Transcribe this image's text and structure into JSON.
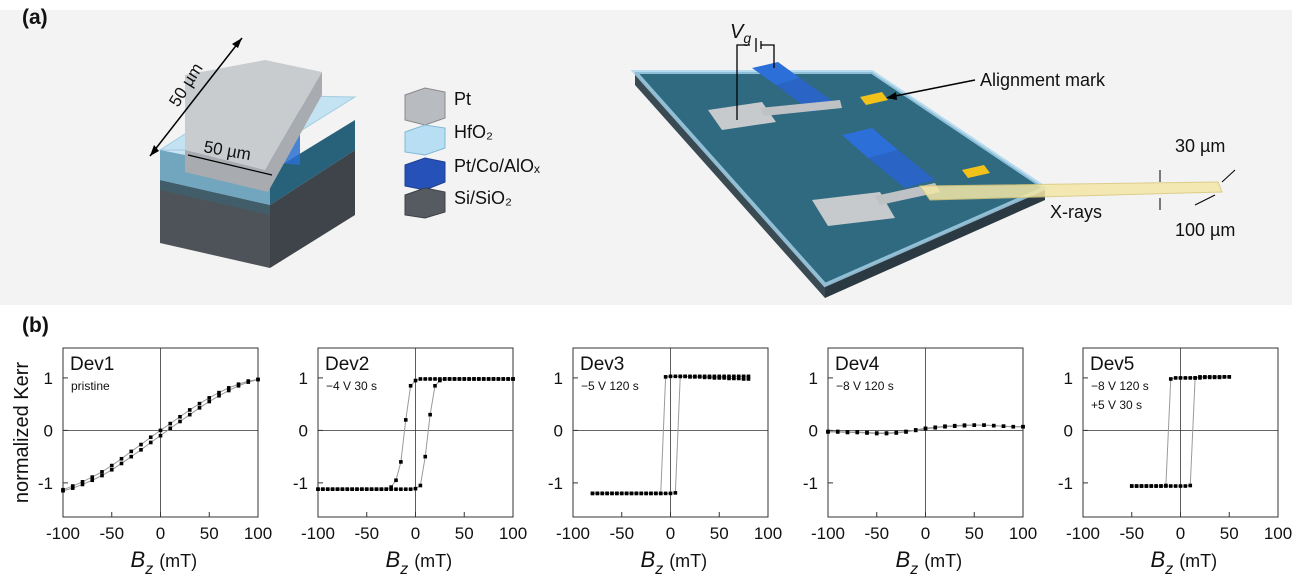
{
  "panel_a": {
    "label": "(a)",
    "device_labels": [
      "50 µm",
      "50 µm"
    ],
    "layer_legend": [
      "Pt",
      "HfO₂",
      "Pt/Co/AlOₓ",
      "Si/SiO₂"
    ],
    "gate_voltage": {
      "main": "V",
      "sub": "g"
    },
    "alignment_mark": "Alignment mark",
    "beam_height": "30 µm",
    "beam_label": "X-rays",
    "beam_width": "100 µm"
  },
  "panel_b": {
    "label": "(b)"
  },
  "chart_data": [
    {
      "type": "line",
      "title": "Dev1",
      "annotation": [
        "pristine"
      ],
      "ylabel": "normalized Kerr",
      "xlabel": {
        "main": "B",
        "sub": "z",
        "unit": "(mT)"
      },
      "xlim": [
        -100,
        100
      ],
      "xticks": [
        -100,
        -50,
        0,
        50,
        100
      ],
      "ylim": [
        -1.65,
        1.57
      ],
      "yticks": [
        -1,
        0,
        1
      ],
      "line_color": "#9a9a9a",
      "x": [
        -100,
        -90,
        -80,
        -70,
        -60,
        -50,
        -40,
        -30,
        -20,
        -10,
        0,
        10,
        20,
        30,
        40,
        50,
        60,
        70,
        80,
        90,
        100
      ],
      "series": [
        {
          "color": "#000000",
          "values": [
            -1.15,
            -1.1,
            -1.03,
            -0.95,
            -0.86,
            -0.75,
            -0.63,
            -0.5,
            -0.37,
            -0.23,
            -0.1,
            0.04,
            0.17,
            0.3,
            0.43,
            0.55,
            0.66,
            0.76,
            0.85,
            0.92,
            0.97
          ]
        },
        {
          "color": "#000000",
          "values": [
            -1.13,
            -1.06,
            -0.98,
            -0.89,
            -0.79,
            -0.67,
            -0.54,
            -0.4,
            -0.27,
            -0.13,
            0.0,
            0.13,
            0.26,
            0.39,
            0.51,
            0.62,
            0.72,
            0.81,
            0.88,
            0.94,
            0.97
          ]
        }
      ]
    },
    {
      "type": "line",
      "title": "Dev2",
      "annotation": [
        "−4 V 30 s"
      ],
      "xlabel": {
        "main": "B",
        "sub": "z",
        "unit": "(mT)"
      },
      "xlim": [
        -100,
        100
      ],
      "xticks": [
        -100,
        -50,
        0,
        50,
        100
      ],
      "ylim": [
        -1.65,
        1.57
      ],
      "yticks": [
        -1,
        0,
        1
      ],
      "line_color": "#9a9a9a",
      "x": [
        -100,
        -95,
        -90,
        -85,
        -80,
        -75,
        -70,
        -65,
        -60,
        -55,
        -50,
        -45,
        -40,
        -35,
        -30,
        -25,
        -20,
        -15,
        -10,
        -5,
        0,
        5,
        10,
        15,
        20,
        25,
        30,
        35,
        40,
        45,
        50,
        55,
        60,
        65,
        70,
        75,
        80,
        85,
        90,
        95,
        100
      ],
      "series": [
        {
          "color": "#000000",
          "values": [
            -1.12,
            -1.12,
            -1.12,
            -1.12,
            -1.12,
            -1.12,
            -1.12,
            -1.12,
            -1.12,
            -1.12,
            -1.12,
            -1.12,
            -1.12,
            -1.12,
            -1.12,
            -1.12,
            -1.12,
            -1.12,
            -1.12,
            -1.12,
            -1.11,
            -1.05,
            -0.5,
            0.3,
            0.85,
            0.95,
            0.98,
            0.98,
            0.98,
            0.98,
            0.98,
            0.98,
            0.98,
            0.98,
            0.98,
            0.98,
            0.98,
            0.98,
            0.98,
            0.98,
            0.98
          ]
        },
        {
          "color": "#000000",
          "values": [
            -1.12,
            -1.12,
            -1.12,
            -1.12,
            -1.12,
            -1.12,
            -1.12,
            -1.12,
            -1.12,
            -1.12,
            -1.12,
            -1.12,
            -1.12,
            -1.12,
            -1.12,
            -1.08,
            -0.95,
            -0.6,
            0.2,
            0.85,
            0.95,
            0.98,
            0.98,
            0.98,
            0.98,
            0.98,
            0.98,
            0.98,
            0.98,
            0.98,
            0.98,
            0.98,
            0.98,
            0.98,
            0.98,
            0.98,
            0.98,
            0.98,
            0.98,
            0.98,
            0.98
          ]
        }
      ]
    },
    {
      "type": "line",
      "title": "Dev3",
      "annotation": [
        "−5 V 120 s"
      ],
      "xlabel": {
        "main": "B",
        "sub": "z",
        "unit": "(mT)"
      },
      "xlim": [
        -100,
        100
      ],
      "xticks": [
        -100,
        -50,
        0,
        50,
        100
      ],
      "ylim": [
        -1.65,
        1.57
      ],
      "yticks": [
        -1,
        0,
        1
      ],
      "line_color": "#9a9a9a",
      "x": [
        -80,
        -75,
        -70,
        -65,
        -60,
        -55,
        -50,
        -45,
        -40,
        -35,
        -30,
        -25,
        -20,
        -15,
        -10,
        -5,
        0,
        5,
        10,
        15,
        20,
        25,
        30,
        35,
        40,
        45,
        50,
        55,
        60,
        65,
        70,
        75,
        80
      ],
      "series": [
        {
          "color": "#000000",
          "values": [
            -1.2,
            -1.2,
            -1.2,
            -1.2,
            -1.2,
            -1.2,
            -1.2,
            -1.2,
            -1.2,
            -1.2,
            -1.2,
            -1.2,
            -1.2,
            -1.2,
            -1.2,
            -1.2,
            -1.2,
            -1.19,
            1.03,
            1.03,
            1.02,
            1.02,
            1.02,
            1.01,
            1.01,
            1.0,
            1.0,
            1.0,
            0.99,
            0.99,
            0.99,
            0.98,
            0.98
          ]
        },
        {
          "color": "#000000",
          "values": [
            -1.2,
            -1.2,
            -1.2,
            -1.2,
            -1.2,
            -1.2,
            -1.2,
            -1.2,
            -1.2,
            -1.2,
            -1.2,
            -1.2,
            -1.2,
            -1.2,
            -1.2,
            1.02,
            1.03,
            1.03,
            1.03,
            1.03,
            1.03,
            1.03,
            1.03,
            1.03,
            1.03,
            1.03,
            1.03,
            1.03,
            1.03,
            1.03,
            1.03,
            1.03,
            1.03
          ]
        }
      ]
    },
    {
      "type": "line",
      "title": "Dev4",
      "annotation": [
        "−8 V 120 s"
      ],
      "xlabel": {
        "main": "B",
        "sub": "z",
        "unit": "(mT)"
      },
      "xlim": [
        -100,
        100
      ],
      "xticks": [
        -100,
        -50,
        0,
        50,
        100
      ],
      "ylim": [
        -1.65,
        1.57
      ],
      "yticks": [
        -1,
        0,
        1
      ],
      "line_color": "#9a9a9a",
      "x": [
        -100,
        -90,
        -80,
        -70,
        -60,
        -50,
        -40,
        -30,
        -20,
        -10,
        0,
        10,
        20,
        30,
        40,
        50,
        60,
        70,
        80,
        90,
        100
      ],
      "series": [
        {
          "color": "#000000",
          "values": [
            -0.02,
            -0.02,
            -0.03,
            -0.03,
            -0.04,
            -0.05,
            -0.05,
            -0.04,
            -0.02,
            0.01,
            0.04,
            0.06,
            0.08,
            0.09,
            0.1,
            0.1,
            0.1,
            0.09,
            0.08,
            0.07,
            0.07
          ]
        },
        {
          "color": "#000000",
          "values": [
            -0.03,
            -0.03,
            -0.04,
            -0.04,
            -0.05,
            -0.06,
            -0.06,
            -0.05,
            -0.03,
            0.0,
            0.03,
            0.05,
            0.07,
            0.08,
            0.09,
            0.1,
            0.1,
            0.09,
            0.08,
            0.07,
            0.07
          ]
        }
      ]
    },
    {
      "type": "line",
      "title": "Dev5",
      "annotation": [
        "−8 V 120 s",
        "+5 V 30 s"
      ],
      "xlabel": {
        "main": "B",
        "sub": "z",
        "unit": "(mT)"
      },
      "xlim": [
        -100,
        100
      ],
      "xticks": [
        -100,
        -50,
        0,
        50,
        100
      ],
      "ylim": [
        -1.65,
        1.57
      ],
      "yticks": [
        -1,
        0,
        1
      ],
      "line_color": "#9a9a9a",
      "x": [
        -50,
        -45,
        -40,
        -35,
        -30,
        -25,
        -20,
        -15,
        -10,
        -5,
        0,
        5,
        10,
        15,
        20,
        25,
        30,
        35,
        40,
        45,
        50
      ],
      "series": [
        {
          "color": "#000000",
          "values": [
            -1.06,
            -1.06,
            -1.06,
            -1.06,
            -1.06,
            -1.06,
            -1.06,
            -1.06,
            -1.06,
            -1.06,
            -1.06,
            -1.06,
            -1.05,
            1.0,
            1.02,
            1.02,
            1.02,
            1.02,
            1.02,
            1.02,
            1.02
          ]
        },
        {
          "color": "#000000",
          "values": [
            -1.06,
            -1.06,
            -1.06,
            -1.06,
            -1.06,
            -1.06,
            -1.06,
            -1.05,
            0.98,
            1.0,
            1.0,
            1.0,
            1.0,
            1.0,
            1.0,
            1.01,
            1.01,
            1.01,
            1.01,
            1.02,
            1.02
          ]
        }
      ]
    }
  ]
}
